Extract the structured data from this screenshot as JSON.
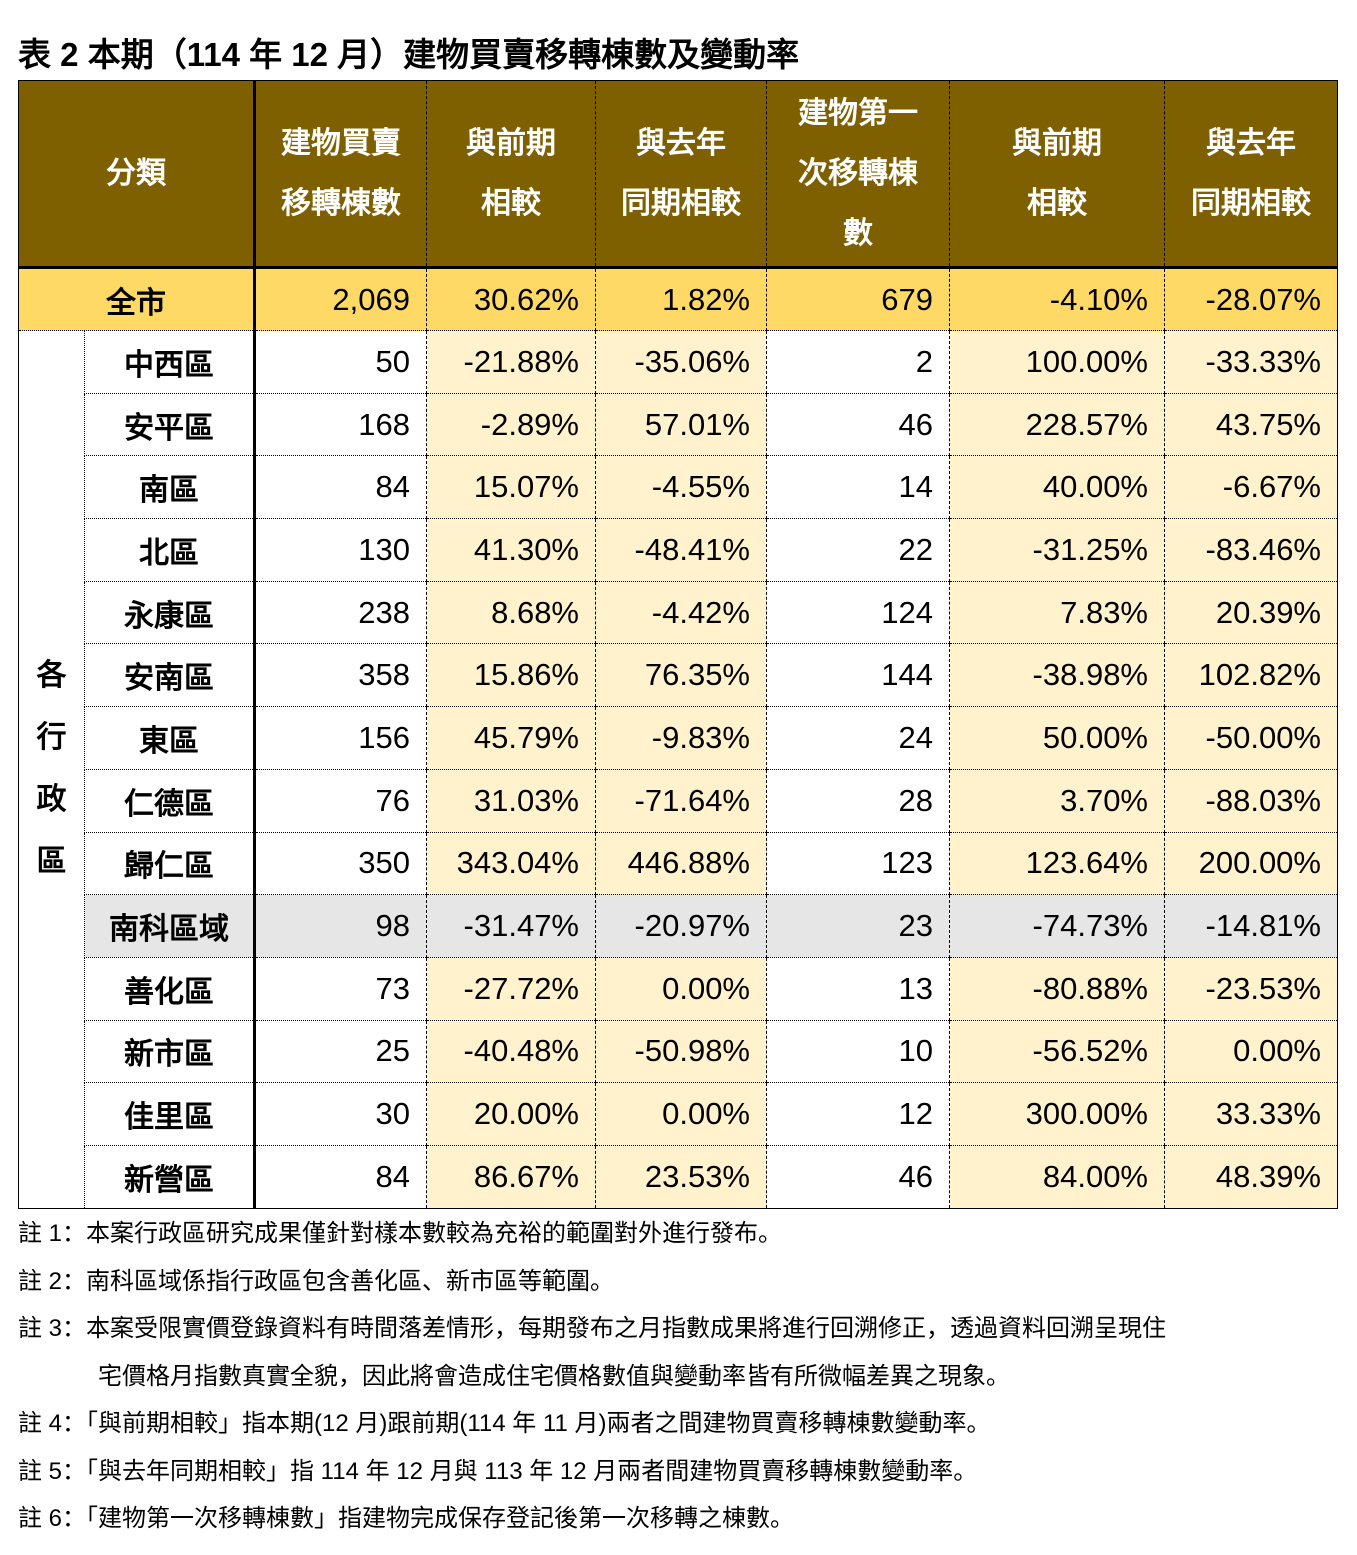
{
  "title": "表 2 本期（114 年 12 月）建物買賣移轉棟數及變動率",
  "colors": {
    "header": "#7f6000",
    "total_row": "#ffd966",
    "pct_cells": "#fff2cc",
    "highlight_row": "#e7e6e6"
  },
  "headers": [
    "分類",
    "建物買賣\n移轉棟數",
    "與前期\n相較",
    "與去年\n同期相較",
    "建物第一\n次移轉棟\n數",
    "與前期\n相較",
    "與去年\n同期相較"
  ],
  "total": {
    "label": "全市",
    "values": [
      "2,069",
      "30.62%",
      "1.82%",
      "679",
      "-4.10%",
      "-28.07%"
    ]
  },
  "group_label": "各\n行\n政\n區",
  "rows": [
    {
      "name": "中西區",
      "values": [
        "50",
        "-21.88%",
        "-35.06%",
        "2",
        "100.00%",
        "-33.33%"
      ]
    },
    {
      "name": "安平區",
      "values": [
        "168",
        "-2.89%",
        "57.01%",
        "46",
        "228.57%",
        "43.75%"
      ]
    },
    {
      "name": "南區",
      "values": [
        "84",
        "15.07%",
        "-4.55%",
        "14",
        "40.00%",
        "-6.67%"
      ]
    },
    {
      "name": "北區",
      "values": [
        "130",
        "41.30%",
        "-48.41%",
        "22",
        "-31.25%",
        "-83.46%"
      ]
    },
    {
      "name": "永康區",
      "values": [
        "238",
        "8.68%",
        "-4.42%",
        "124",
        "7.83%",
        "20.39%"
      ]
    },
    {
      "name": "安南區",
      "values": [
        "358",
        "15.86%",
        "76.35%",
        "144",
        "-38.98%",
        "102.82%"
      ]
    },
    {
      "name": "東區",
      "values": [
        "156",
        "45.79%",
        "-9.83%",
        "24",
        "50.00%",
        "-50.00%"
      ]
    },
    {
      "name": "仁德區",
      "values": [
        "76",
        "31.03%",
        "-71.64%",
        "28",
        "3.70%",
        "-88.03%"
      ]
    },
    {
      "name": "歸仁區",
      "values": [
        "350",
        "343.04%",
        "446.88%",
        "123",
        "123.64%",
        "200.00%"
      ]
    },
    {
      "name": "南科區域",
      "values": [
        "98",
        "-31.47%",
        "-20.97%",
        "23",
        "-74.73%",
        "-14.81%"
      ]
    },
    {
      "name": "善化區",
      "values": [
        "73",
        "-27.72%",
        "0.00%",
        "13",
        "-80.88%",
        "-23.53%"
      ]
    },
    {
      "name": "新市區",
      "values": [
        "25",
        "-40.48%",
        "-50.98%",
        "10",
        "-56.52%",
        "0.00%"
      ]
    },
    {
      "name": "佳里區",
      "values": [
        "30",
        "20.00%",
        "0.00%",
        "12",
        "300.00%",
        "33.33%"
      ]
    },
    {
      "name": "新營區",
      "values": [
        "84",
        "86.67%",
        "23.53%",
        "46",
        "84.00%",
        "48.39%"
      ]
    }
  ],
  "notes": [
    "註 1：本案行政區研究成果僅針對樣本數較為充裕的範圍對外進行發布。",
    "註 2：南科區域係指行政區包含善化區、新市區等範圍。",
    "註 3：本案受限實價登錄資料有時間落差情形，每期發布之月指數成果將進行回溯修正，透過資料回溯呈現住",
    "宅價格月指數真實全貌，因此將會造成住宅價格數值與變動率皆有所微幅差異之現象。",
    "註 4：「與前期相較」指本期(12 月)跟前期(114 年 11 月)兩者之間建物買賣移轉棟數變動率。",
    "註 5：「與去年同期相較」指 114 年 12 月與 113 年 12 月兩者間建物買賣移轉棟數變動率。",
    "註 6：「建物第一次移轉棟數」指建物完成保存登記後第一次移轉之棟數。"
  ]
}
